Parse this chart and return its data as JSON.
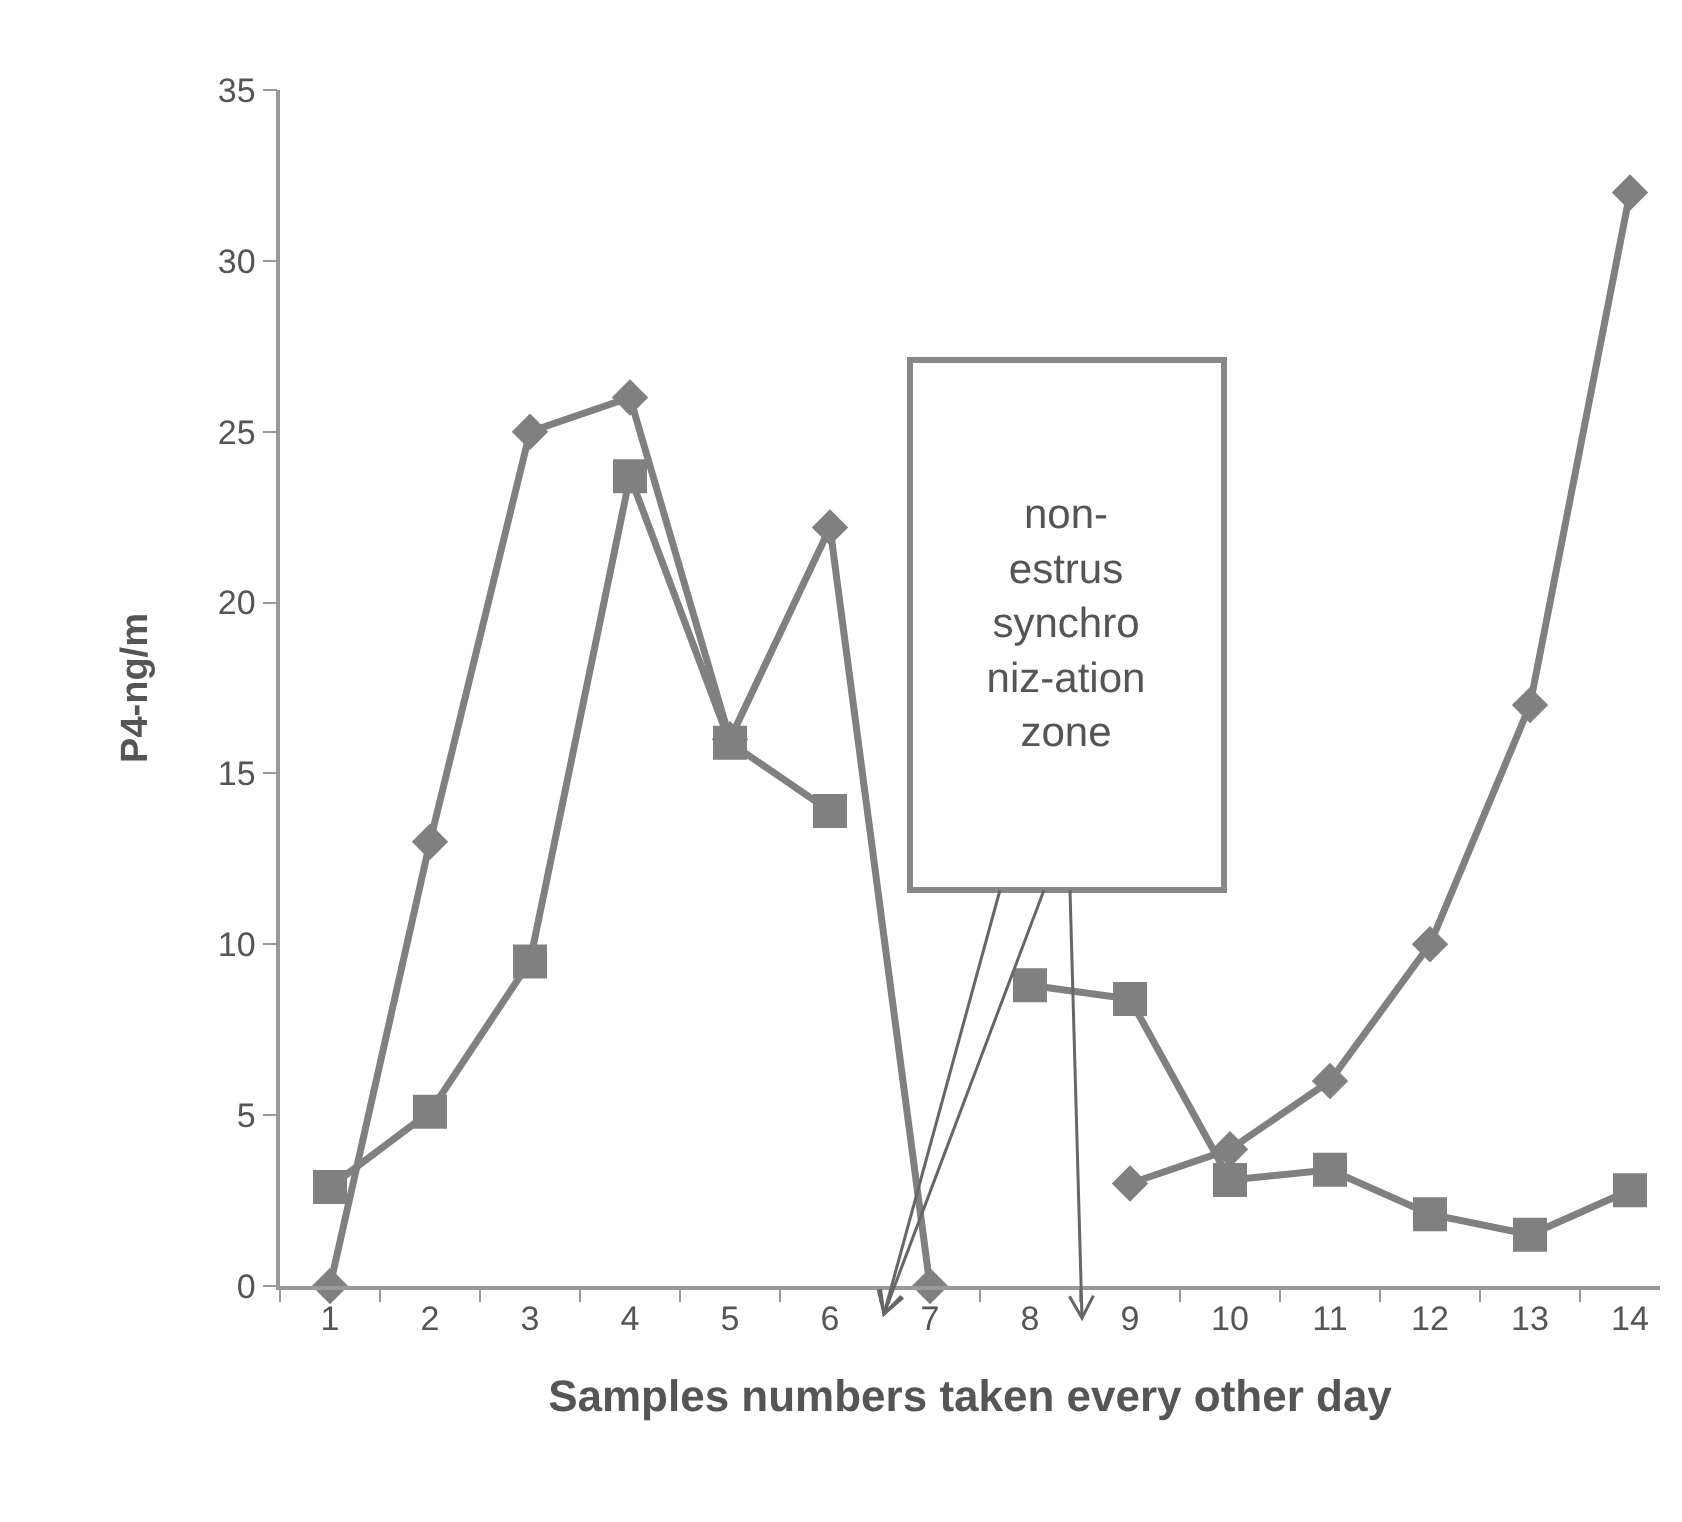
{
  "chart_data": {
    "type": "line",
    "xlabel": "Samples numbers taken every other day",
    "ylabel": "P4-ng/m",
    "x": [
      1,
      2,
      3,
      4,
      5,
      6,
      7,
      8,
      9,
      10,
      11,
      12,
      13,
      14
    ],
    "series": [
      {
        "color": "#808080",
        "marker": "diamond",
        "values": [
          0,
          13,
          25,
          26,
          16,
          22.2,
          0,
          null,
          3,
          4,
          6,
          10,
          17,
          32
        ]
      },
      {
        "color": "#808080",
        "marker": "square",
        "values": [
          2.9,
          5.1,
          9.5,
          23.7,
          15.9,
          13.9,
          null,
          8.8,
          8.4,
          3.1,
          3.4,
          2.1,
          1.5,
          2.8
        ]
      }
    ],
    "xlim": [
      0.5,
      14.3
    ],
    "xticks": [
      1,
      2,
      3,
      4,
      5,
      6,
      7,
      8,
      9,
      10,
      11,
      12,
      13,
      14
    ],
    "ylim": [
      0,
      35
    ],
    "yticks": [
      0,
      5,
      10,
      15,
      20,
      25,
      30,
      35
    ],
    "grid": false,
    "legend": false,
    "line_style": "solid",
    "annotations": [
      "non-\nestrus\nsynchro\nniz-ation\nzone"
    ]
  }
}
